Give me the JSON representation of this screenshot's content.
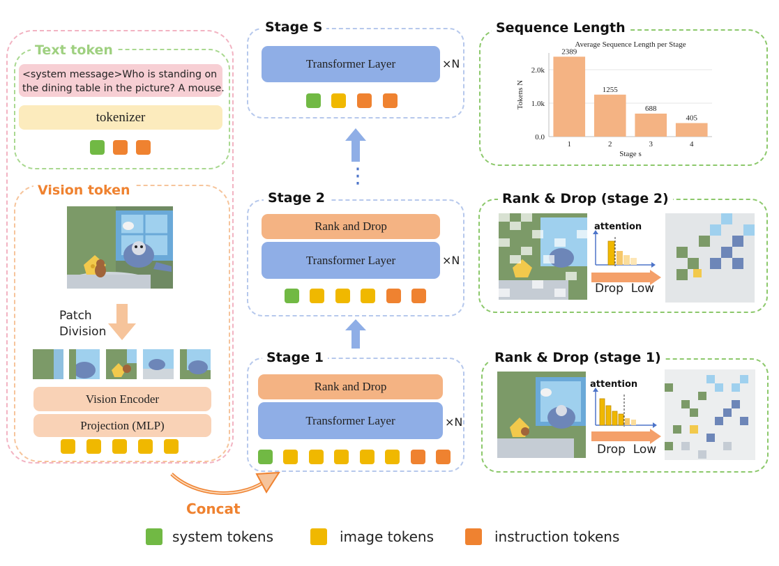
{
  "text_token": {
    "title": "Text token",
    "message": "<system message>Who is standing on the dining table in the picture? A mouse.",
    "tokenizer": "tokenizer"
  },
  "vision_token": {
    "title": "Vision token",
    "patch_division": "Patch\nDivision",
    "vision_encoder": "Vision Encoder",
    "projection": "Projection (MLP)"
  },
  "concat_label": "Concat",
  "stages": {
    "stage_s": {
      "title": "Stage S",
      "transformer": "Transformer Layer",
      "repeat": "×N"
    },
    "stage_2": {
      "title": "Stage 2",
      "rank_drop": "Rank and Drop",
      "transformer": "Transformer Layer",
      "repeat": "×N"
    },
    "stage_1": {
      "title": "Stage 1",
      "rank_drop": "Rank and Drop",
      "transformer": "Transformer Layer",
      "repeat": "×N"
    },
    "ellipsis": "⋮"
  },
  "sequence_length": {
    "title": "Sequence Length"
  },
  "rank_drop_2": {
    "title": "Rank & Drop (stage 2)",
    "attention": "attention",
    "drop_low": "Drop  Low"
  },
  "rank_drop_1": {
    "title": "Rank & Drop (stage 1)",
    "attention": "attention",
    "drop_low": "Drop  Low"
  },
  "legend": {
    "system": "system tokens",
    "image": "image tokens",
    "instruction": "instruction tokens"
  },
  "colors": {
    "system": "#71b944",
    "image": "#f0b800",
    "instruction": "#ef8230",
    "transformer": "#8faee6",
    "rank_drop": "#f4b383",
    "bar": "#f4b383"
  },
  "chart_data": {
    "type": "bar",
    "title": "Average Sequence Length per Stage",
    "xlabel": "Stage s",
    "ylabel": "Tokens N",
    "categories": [
      "1",
      "2",
      "3",
      "4"
    ],
    "values": [
      2389,
      1255,
      688,
      405
    ],
    "ylim": [
      0,
      2500
    ],
    "yticks": [
      0,
      1000,
      2000
    ],
    "ytick_labels": [
      "0.0",
      "1.0k",
      "2.0k"
    ],
    "grid": true
  }
}
